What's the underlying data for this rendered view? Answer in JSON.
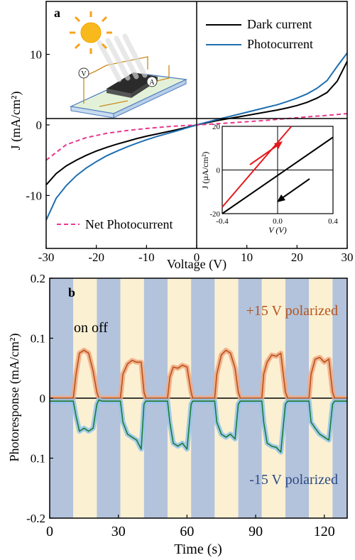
{
  "chart_data": [
    {
      "panel": "a",
      "type": "line",
      "panel_label": "a",
      "xlabel": "Voltage (V)",
      "ylabel": "J (mA/cm²)",
      "xlim": [
        -30,
        30
      ],
      "ylim": [
        -17.5,
        17.5
      ],
      "xticks": [
        -30,
        -20,
        -10,
        0,
        10,
        20,
        30
      ],
      "yticks": [
        -10,
        0,
        10
      ],
      "legend": {
        "placement": "top-right",
        "entries": [
          "Dark current",
          "Photocurrent"
        ]
      },
      "annotations": [
        "Net Photocurrent"
      ],
      "series": [
        {
          "name": "Dark current",
          "color": "#000000",
          "x": [
            -30,
            -28,
            -26,
            -24,
            -22,
            -20,
            -18,
            -16,
            -14,
            -12,
            -10,
            -8,
            -6,
            -4,
            -2,
            0,
            2,
            4,
            6,
            8,
            10,
            12,
            14,
            16,
            18,
            20,
            22,
            24,
            26,
            28,
            30
          ],
          "y": [
            -8.5,
            -6.9,
            -5.8,
            -5.0,
            -4.3,
            -3.7,
            -3.2,
            -2.75,
            -2.35,
            -1.95,
            -1.6,
            -1.3,
            -1.0,
            -0.68,
            -0.35,
            0,
            0.3,
            0.6,
            0.85,
            1.1,
            1.35,
            1.6,
            1.85,
            2.1,
            2.4,
            2.75,
            3.2,
            3.8,
            4.6,
            6.2,
            9.0
          ]
        },
        {
          "name": "Photocurrent",
          "color": "#1f6fb0",
          "x": [
            -30,
            -28,
            -26,
            -24,
            -22,
            -20,
            -18,
            -16,
            -14,
            -12,
            -10,
            -8,
            -6,
            -4,
            -2,
            0,
            2,
            4,
            6,
            8,
            10,
            12,
            14,
            16,
            18,
            20,
            22,
            24,
            26,
            28,
            30
          ],
          "y": [
            -13.5,
            -10.4,
            -8.6,
            -7.2,
            -6.1,
            -5.2,
            -4.4,
            -3.75,
            -3.15,
            -2.6,
            -2.1,
            -1.65,
            -1.25,
            -0.85,
            -0.42,
            0,
            0.38,
            0.75,
            1.1,
            1.45,
            1.8,
            2.15,
            2.5,
            2.85,
            3.3,
            3.8,
            4.4,
            5.2,
            6.3,
            8.3,
            10.2
          ]
        },
        {
          "name": "Net Photocurrent",
          "color": "#e8388e",
          "x": [
            -30,
            -26,
            -22,
            -18,
            -14,
            -10,
            -6,
            -2,
            0,
            2,
            6,
            10,
            14,
            18,
            22,
            26,
            30
          ],
          "y": [
            -5.0,
            -2.8,
            -1.8,
            -1.2,
            -0.8,
            -0.5,
            -0.25,
            -0.07,
            0,
            0.08,
            0.25,
            0.45,
            0.65,
            0.9,
            1.15,
            1.35,
            1.6
          ]
        }
      ],
      "inset": {
        "xlabel": "V (V)",
        "ylabel": "J (µA/cm²)",
        "xlim": [
          -0.4,
          0.4
        ],
        "ylim": [
          -20,
          20
        ],
        "xticks": [
          "-0.4",
          "0.0",
          "0.4"
        ],
        "yticks": [
          "20",
          "0",
          "-20"
        ],
        "series": [
          {
            "color": "#e41a1c",
            "x": [
              -0.4,
              0.1
            ],
            "y": [
              -17,
              20
            ]
          },
          {
            "color": "#000000",
            "x": [
              -0.4,
              0.4
            ],
            "y": [
              -20,
              15
            ]
          }
        ],
        "arrows": [
          {
            "color": "#e41a1c",
            "direction": "up-right"
          },
          {
            "color": "#000000",
            "direction": "down-left"
          }
        ]
      }
    },
    {
      "panel": "b",
      "type": "line",
      "panel_label": "b",
      "xlabel": "Time (s)",
      "ylabel": "Photoresponse  (mA/cm²)",
      "xlim": [
        0,
        130
      ],
      "ylim": [
        -0.2,
        0.2
      ],
      "xticks": [
        0,
        30,
        60,
        90,
        120
      ],
      "ytick_labels": [
        "0.2",
        "0.1",
        "0",
        "0.1",
        "-0.2"
      ],
      "annotations": [
        "+15 V polarized",
        "-15 V polarized",
        "on off"
      ],
      "cycle_period_s": 20.6,
      "on_duration_s": 10.3,
      "first_on_s": 10.3,
      "series": [
        {
          "name": "+15 V polarized",
          "color": "#b5541b",
          "band_color": "#f2a883",
          "x": [
            0,
            10.3,
            11.5,
            13,
            15,
            17,
            19,
            20.6,
            21.5,
            23,
            30.9,
            32,
            34,
            36,
            38,
            40,
            41.2,
            42,
            44,
            51.5,
            52.5,
            54,
            56,
            58,
            60,
            61.8,
            62.5,
            64,
            72.1,
            73,
            75,
            77,
            79,
            81,
            82.4,
            83.3,
            85,
            92.7,
            93.5,
            95,
            97,
            99,
            101,
            103.0,
            104,
            106,
            113.3,
            114.2,
            116,
            118,
            120,
            122,
            123.6,
            124.5,
            126,
            130
          ],
          "y": [
            0,
            0,
            0.04,
            0.075,
            0.08,
            0.075,
            0.045,
            0.01,
            0,
            0,
            0,
            0.04,
            0.057,
            0.063,
            0.06,
            0.06,
            0.01,
            0,
            0,
            0,
            0.035,
            0.052,
            0.05,
            0.055,
            0.052,
            0.01,
            0,
            0,
            0,
            0.04,
            0.072,
            0.08,
            0.075,
            0.05,
            0.01,
            0,
            0,
            0,
            0.04,
            0.06,
            0.072,
            0.07,
            0.075,
            0.01,
            0,
            0,
            0,
            0.04,
            0.065,
            0.068,
            0.06,
            0.065,
            0.01,
            0,
            0,
            0
          ]
        },
        {
          "name": "-15 V polarized",
          "color": "#1e7a2f",
          "band_color": "#8fc3ee",
          "x": [
            0,
            10.3,
            11.5,
            13,
            15,
            17,
            19,
            20.6,
            21.5,
            23,
            30.9,
            32,
            34,
            36,
            38,
            40,
            41.2,
            42,
            44,
            51.5,
            52.5,
            54,
            56,
            58,
            60,
            61.8,
            62.5,
            64,
            72.1,
            73,
            75,
            77,
            79,
            81,
            82.4,
            83.3,
            85,
            92.7,
            93.5,
            95,
            97,
            99,
            101,
            103.0,
            104,
            106,
            113.3,
            114.2,
            116,
            118,
            120,
            122,
            123.6,
            124.5,
            126,
            130
          ],
          "y": [
            -0.005,
            -0.005,
            -0.03,
            -0.055,
            -0.05,
            -0.055,
            -0.05,
            -0.01,
            -0.003,
            -0.005,
            -0.005,
            -0.04,
            -0.06,
            -0.065,
            -0.07,
            -0.085,
            -0.01,
            -0.005,
            -0.005,
            -0.005,
            -0.04,
            -0.075,
            -0.08,
            -0.075,
            -0.085,
            -0.01,
            -0.005,
            -0.005,
            -0.005,
            -0.04,
            -0.06,
            -0.065,
            -0.06,
            -0.068,
            -0.01,
            -0.005,
            -0.005,
            -0.005,
            -0.04,
            -0.075,
            -0.08,
            -0.082,
            -0.09,
            -0.01,
            -0.005,
            -0.005,
            -0.005,
            -0.04,
            -0.05,
            -0.06,
            -0.065,
            -0.07,
            -0.01,
            -0.005,
            -0.005,
            -0.005
          ]
        }
      ]
    }
  ]
}
